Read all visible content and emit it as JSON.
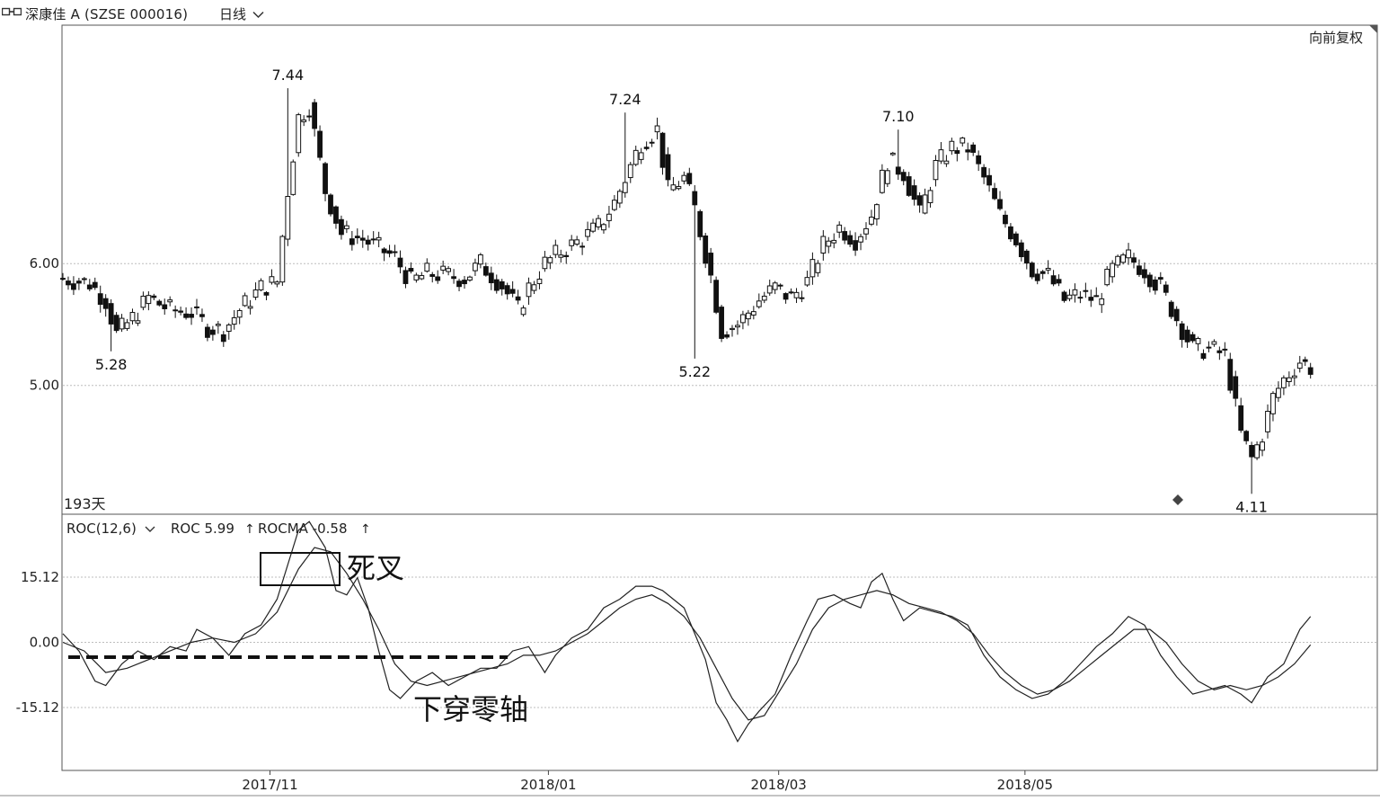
{
  "header": {
    "instrument": "深康佳 A (SZSE  000016)",
    "period": "日线"
  },
  "panel_labels": {
    "adjust": "向前复权",
    "day_count": "193天",
    "indicator_name": "ROC(12,6)",
    "roc_label": "ROC 5.99",
    "rocma_label": "ROCMA -0.58",
    "arrow": "↑"
  },
  "annotations": {
    "dead_cross": "死叉",
    "cross_zero": "下穿零轴"
  },
  "colors": {
    "grid": "#bdbdbd",
    "axis": "#333333",
    "candle": "#111111",
    "line": "#222222"
  },
  "chart_data": [
    {
      "type": "candlestick",
      "yticks": [
        5.0,
        6.0
      ],
      "ytick_labels": [
        "5.00",
        "6.00"
      ],
      "ylim": [
        3.95,
        7.95
      ],
      "xtick_labels": [
        "2017/11",
        "2018/01",
        "2018/03",
        "2018/05"
      ],
      "xtick_index": [
        38,
        90,
        133,
        179
      ],
      "n": 193,
      "marked_values": [
        {
          "label": "7.44",
          "index": 42,
          "value": 7.44
        },
        {
          "label": "5.28",
          "index": 9,
          "value": 5.28
        },
        {
          "label": "7.24",
          "index": 105,
          "value": 7.24
        },
        {
          "label": "5.22",
          "index": 118,
          "value": 5.22
        },
        {
          "label": "7.10",
          "index": 156,
          "value": 7.1
        },
        {
          "label": "4.11",
          "index": 222,
          "value": 4.11
        }
      ],
      "anchors": [
        [
          0,
          5.88
        ],
        [
          5,
          5.84
        ],
        [
          8,
          5.7
        ],
        [
          10,
          5.42
        ],
        [
          13,
          5.55
        ],
        [
          16,
          5.72
        ],
        [
          20,
          5.62
        ],
        [
          24,
          5.6
        ],
        [
          27,
          5.48
        ],
        [
          30,
          5.45
        ],
        [
          33,
          5.62
        ],
        [
          37,
          5.8
        ],
        [
          40,
          5.85
        ],
        [
          42,
          6.6
        ],
        [
          44,
          7.2
        ],
        [
          46,
          7.3
        ],
        [
          49,
          6.6
        ],
        [
          52,
          6.25
        ],
        [
          56,
          6.2
        ],
        [
          60,
          6.1
        ],
        [
          62,
          6.05
        ],
        [
          65,
          5.85
        ],
        [
          68,
          5.92
        ],
        [
          72,
          5.9
        ],
        [
          75,
          5.88
        ],
        [
          78,
          6.0
        ],
        [
          82,
          5.82
        ],
        [
          85,
          5.62
        ],
        [
          87,
          5.8
        ],
        [
          90,
          6.0
        ],
        [
          93,
          6.1
        ],
        [
          97,
          6.2
        ],
        [
          100,
          6.3
        ],
        [
          103,
          6.5
        ],
        [
          105,
          6.7
        ],
        [
          108,
          7.0
        ],
        [
          111,
          7.1
        ],
        [
          113,
          6.6
        ],
        [
          116,
          6.7
        ],
        [
          118,
          6.45
        ],
        [
          121,
          5.9
        ],
        [
          123,
          5.45
        ],
        [
          126,
          5.5
        ],
        [
          130,
          5.7
        ],
        [
          133,
          5.8
        ],
        [
          136,
          5.72
        ],
        [
          139,
          5.85
        ],
        [
          142,
          6.15
        ],
        [
          145,
          6.3
        ],
        [
          148,
          6.2
        ],
        [
          151,
          6.4
        ],
        [
          154,
          6.85
        ],
        [
          157,
          6.75
        ],
        [
          160,
          6.4
        ],
        [
          163,
          6.8
        ],
        [
          166,
          6.95
        ],
        [
          169,
          6.95
        ],
        [
          172,
          6.7
        ],
        [
          175,
          6.4
        ],
        [
          178,
          6.2
        ],
        [
          181,
          5.95
        ],
        [
          184,
          5.9
        ],
        [
          187,
          5.7
        ],
        [
          190,
          5.75
        ],
        [
          193,
          5.7
        ],
        [
          196,
          5.95
        ],
        [
          199,
          6.05
        ],
        [
          202,
          5.95
        ],
        [
          205,
          5.8
        ],
        [
          208,
          5.55
        ],
        [
          211,
          5.3
        ],
        [
          214,
          5.3
        ],
        [
          217,
          5.25
        ],
        [
          220,
          4.6
        ],
        [
          222,
          4.4
        ],
        [
          224,
          4.6
        ],
        [
          226,
          4.9
        ],
        [
          228,
          5.05
        ],
        [
          231,
          5.2
        ],
        [
          233,
          5.15
        ]
      ],
      "wick_spread": 0.06
    },
    {
      "type": "line",
      "yticks": [
        15.12,
        0.0,
        -15.12
      ],
      "ytick_labels": [
        "15.12",
        "0.00",
        "-15.12"
      ],
      "ylim": [
        -29.5,
        29.5
      ],
      "series": [
        {
          "name": "ROC",
          "key": "roc",
          "points": [
            [
              0,
              2
            ],
            [
              3,
              -2
            ],
            [
              6,
              -9
            ],
            [
              8,
              -10
            ],
            [
              11,
              -5
            ],
            [
              14,
              -2
            ],
            [
              17,
              -4
            ],
            [
              20,
              -1
            ],
            [
              23,
              -2
            ],
            [
              25,
              3
            ],
            [
              28,
              1
            ],
            [
              31,
              -3
            ],
            [
              34,
              2
            ],
            [
              37,
              4
            ],
            [
              40,
              10
            ],
            [
              42,
              18
            ],
            [
              44,
              26
            ],
            [
              46,
              28
            ],
            [
              49,
              22
            ],
            [
              51,
              12
            ],
            [
              53,
              11
            ],
            [
              55,
              15
            ],
            [
              57,
              8
            ],
            [
              59,
              -2
            ],
            [
              61,
              -11
            ],
            [
              63,
              -13
            ],
            [
              66,
              -9
            ],
            [
              69,
              -7
            ],
            [
              72,
              -10
            ],
            [
              75,
              -8
            ],
            [
              78,
              -6
            ],
            [
              81,
              -6
            ],
            [
              84,
              -2
            ],
            [
              87,
              -1
            ],
            [
              90,
              -7
            ],
            [
              92,
              -3
            ],
            [
              95,
              1
            ],
            [
              98,
              3
            ],
            [
              101,
              8
            ],
            [
              104,
              10
            ],
            [
              107,
              13
            ],
            [
              110,
              13
            ],
            [
              112,
              12
            ],
            [
              114,
              10
            ],
            [
              116,
              8
            ],
            [
              118,
              2
            ],
            [
              120,
              -4
            ],
            [
              122,
              -14
            ],
            [
              124,
              -18
            ],
            [
              126,
              -23
            ],
            [
              128,
              -19
            ],
            [
              130,
              -16
            ],
            [
              133,
              -12
            ],
            [
              136,
              -3
            ],
            [
              139,
              5
            ],
            [
              141,
              10
            ],
            [
              144,
              11
            ],
            [
              147,
              9
            ],
            [
              149,
              8
            ],
            [
              151,
              14
            ],
            [
              153,
              16
            ],
            [
              155,
              10
            ],
            [
              157,
              5
            ],
            [
              160,
              8
            ],
            [
              163,
              7
            ],
            [
              166,
              6
            ],
            [
              169,
              4
            ],
            [
              172,
              -3
            ],
            [
              175,
              -8
            ],
            [
              178,
              -11
            ],
            [
              181,
              -13
            ],
            [
              184,
              -12
            ],
            [
              187,
              -9
            ],
            [
              190,
              -5
            ],
            [
              193,
              -1
            ],
            [
              196,
              2
            ],
            [
              199,
              6
            ],
            [
              202,
              4
            ],
            [
              205,
              -3
            ],
            [
              208,
              -8
            ],
            [
              211,
              -12
            ],
            [
              214,
              -11
            ],
            [
              217,
              -10
            ],
            [
              220,
              -12
            ],
            [
              222,
              -14
            ],
            [
              225,
              -8
            ],
            [
              228,
              -5
            ],
            [
              231,
              3
            ],
            [
              233,
              5.99
            ]
          ]
        },
        {
          "name": "ROCMA",
          "key": "rocma",
          "points": [
            [
              0,
              0
            ],
            [
              4,
              -2
            ],
            [
              8,
              -7
            ],
            [
              12,
              -6
            ],
            [
              16,
              -4
            ],
            [
              20,
              -2
            ],
            [
              24,
              0
            ],
            [
              28,
              1
            ],
            [
              32,
              0
            ],
            [
              36,
              2
            ],
            [
              40,
              7
            ],
            [
              44,
              17
            ],
            [
              47,
              22
            ],
            [
              50,
              21
            ],
            [
              53,
              16
            ],
            [
              56,
              10
            ],
            [
              59,
              3
            ],
            [
              62,
              -5
            ],
            [
              65,
              -9
            ],
            [
              68,
              -10
            ],
            [
              71,
              -9
            ],
            [
              74,
              -8
            ],
            [
              77,
              -7
            ],
            [
              80,
              -6
            ],
            [
              83,
              -5
            ],
            [
              86,
              -3
            ],
            [
              89,
              -3
            ],
            [
              92,
              -2
            ],
            [
              95,
              0
            ],
            [
              98,
              2
            ],
            [
              101,
              5
            ],
            [
              104,
              8
            ],
            [
              107,
              10
            ],
            [
              110,
              11
            ],
            [
              113,
              9
            ],
            [
              116,
              6
            ],
            [
              119,
              1
            ],
            [
              122,
              -6
            ],
            [
              125,
              -13
            ],
            [
              128,
              -18
            ],
            [
              131,
              -17
            ],
            [
              134,
              -11
            ],
            [
              137,
              -5
            ],
            [
              140,
              3
            ],
            [
              143,
              8
            ],
            [
              146,
              10
            ],
            [
              149,
              11
            ],
            [
              152,
              12
            ],
            [
              155,
              11
            ],
            [
              158,
              9
            ],
            [
              161,
              8
            ],
            [
              164,
              7
            ],
            [
              167,
              5
            ],
            [
              170,
              2
            ],
            [
              173,
              -3
            ],
            [
              176,
              -7
            ],
            [
              179,
              -10
            ],
            [
              182,
              -12
            ],
            [
              185,
              -11
            ],
            [
              188,
              -9
            ],
            [
              191,
              -6
            ],
            [
              194,
              -3
            ],
            [
              197,
              0
            ],
            [
              200,
              3
            ],
            [
              203,
              3
            ],
            [
              206,
              0
            ],
            [
              209,
              -5
            ],
            [
              212,
              -9
            ],
            [
              215,
              -11
            ],
            [
              218,
              -10
            ],
            [
              221,
              -11
            ],
            [
              224,
              -10
            ],
            [
              227,
              -8
            ],
            [
              230,
              -5
            ],
            [
              233,
              -0.58
            ]
          ]
        }
      ]
    }
  ]
}
